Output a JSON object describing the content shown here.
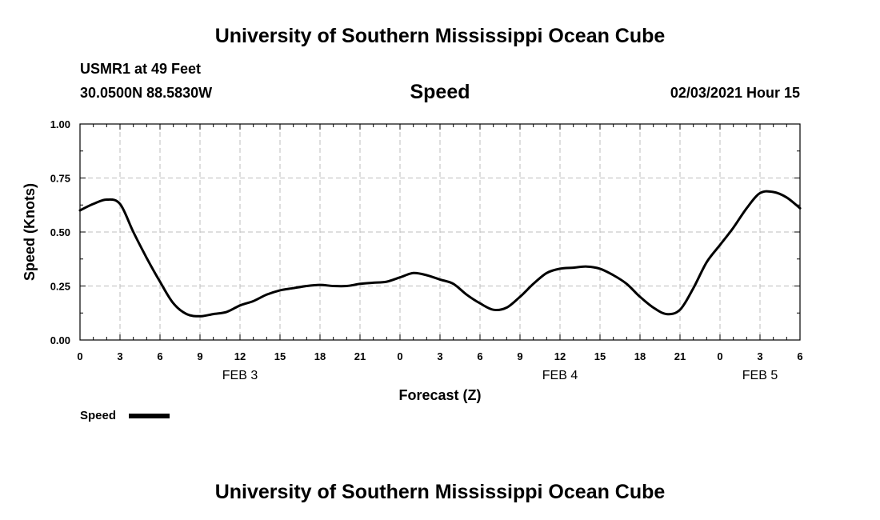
{
  "header": {
    "title": "University of Southern Mississippi Ocean Cube",
    "station": "USMR1 at 49 Feet",
    "coords": "30.0500N 88.5830W",
    "parameter": "Speed",
    "datetime": "02/03/2021 Hour 15"
  },
  "footer": {
    "title": "University of Southern Mississippi Ocean Cube"
  },
  "chart_data": {
    "type": "line",
    "title": "Speed",
    "xlabel": "Forecast (Z)",
    "ylabel": "Speed (Knots)",
    "ylim": [
      0,
      1
    ],
    "yticks": [
      "0.00",
      "0.25",
      "0.50",
      "0.75",
      "1.00"
    ],
    "xlim_hours": [
      0,
      54
    ],
    "xticks": [
      "0",
      "3",
      "6",
      "9",
      "12",
      "15",
      "18",
      "21",
      "0",
      "3",
      "6",
      "9",
      "12",
      "15",
      "18",
      "21",
      "0",
      "3",
      "6"
    ],
    "date_labels": [
      {
        "label": "FEB 3",
        "hour": 12
      },
      {
        "label": "FEB 4",
        "hour": 36
      },
      {
        "label": "FEB 5",
        "hour": 51
      }
    ],
    "grid": true,
    "legend_position": "bottom-left",
    "series": [
      {
        "name": "Speed",
        "color": "#000000",
        "x": [
          0,
          1,
          2,
          3,
          4,
          5,
          6,
          7,
          8,
          9,
          10,
          11,
          12,
          13,
          14,
          15,
          16,
          17,
          18,
          19,
          20,
          21,
          22,
          23,
          24,
          25,
          26,
          27,
          28,
          29,
          30,
          31,
          32,
          33,
          34,
          35,
          36,
          37,
          38,
          39,
          40,
          41,
          42,
          43,
          44,
          45,
          46,
          47,
          48,
          49,
          50,
          51,
          52,
          53,
          54
        ],
        "y": [
          0.6,
          0.63,
          0.65,
          0.63,
          0.5,
          0.38,
          0.27,
          0.17,
          0.12,
          0.11,
          0.12,
          0.13,
          0.16,
          0.18,
          0.21,
          0.23,
          0.24,
          0.25,
          0.255,
          0.25,
          0.25,
          0.26,
          0.265,
          0.27,
          0.29,
          0.31,
          0.3,
          0.28,
          0.26,
          0.21,
          0.17,
          0.14,
          0.15,
          0.2,
          0.26,
          0.31,
          0.33,
          0.335,
          0.34,
          0.33,
          0.3,
          0.26,
          0.2,
          0.15,
          0.12,
          0.14,
          0.24,
          0.36,
          0.44,
          0.52,
          0.61,
          0.68,
          0.685,
          0.66,
          0.61
        ]
      }
    ]
  }
}
